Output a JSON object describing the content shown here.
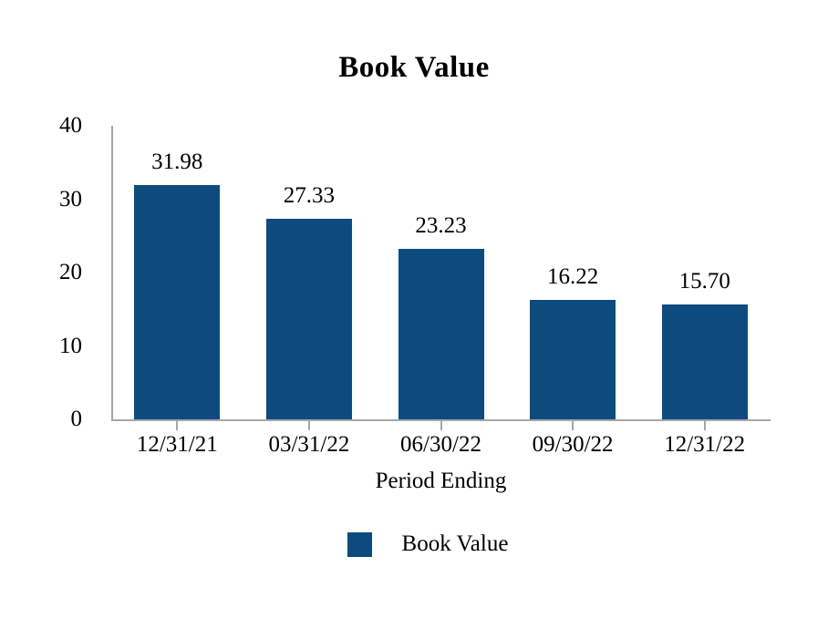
{
  "chart_data": {
    "type": "bar",
    "title": "Book Value",
    "categories": [
      "12/31/21",
      "03/31/22",
      "06/30/22",
      "09/30/22",
      "12/31/22"
    ],
    "values": [
      31.98,
      27.33,
      23.23,
      16.22,
      15.7
    ],
    "value_labels": [
      "31.98",
      "27.33",
      "23.23",
      "16.22",
      "15.70"
    ],
    "xlabel": "Period Ending",
    "ylabel": "",
    "ylim": [
      0,
      40
    ],
    "yticks": [
      0,
      10,
      20,
      30,
      40
    ],
    "grid": false,
    "legend_position": "bottom",
    "legend": [
      {
        "label": "Book Value",
        "color": "#0d4b7f"
      }
    ],
    "bar_color": "#0d4b7f",
    "axis_color": "#a6a6a6",
    "text_color": "#000000",
    "background_color": "#ffffff"
  }
}
